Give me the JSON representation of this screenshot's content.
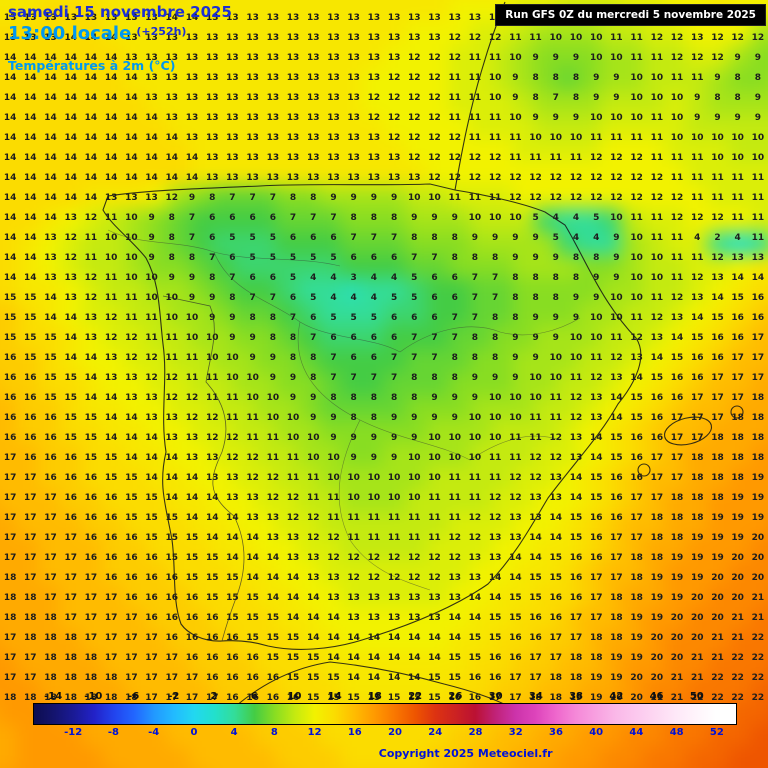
{
  "header": {
    "date_line": "samedi 15 novembre 2025",
    "time_line": "13:00 locale",
    "offset": "(+252h)",
    "variable": "Températures à 2m (°C)",
    "run_info": "Run GFS 0Z du mercredi 5 novembre 2025"
  },
  "copyright": "Copyright 2025 Meteociel.fr",
  "legend": {
    "range": {
      "min": -16,
      "max": 54
    },
    "top_labels": [
      -14,
      -10,
      -6,
      -2,
      2,
      6,
      10,
      14,
      18,
      22,
      26,
      30,
      34,
      38,
      42,
      46,
      50
    ],
    "bottom_labels": [
      -12,
      -8,
      -4,
      0,
      4,
      8,
      12,
      16,
      20,
      24,
      28,
      32,
      36,
      40,
      44,
      48,
      52
    ],
    "scale": [
      [
        -16,
        "#0d0d50"
      ],
      [
        -14,
        "#14146e"
      ],
      [
        -12,
        "#1a1a96"
      ],
      [
        -10,
        "#2222c8"
      ],
      [
        -8,
        "#2244ee"
      ],
      [
        -6,
        "#2266ff"
      ],
      [
        -4,
        "#2299ff"
      ],
      [
        -2,
        "#22bbff"
      ],
      [
        0,
        "#22d8f0"
      ],
      [
        2,
        "#22e0cc"
      ],
      [
        4,
        "#33dd99"
      ],
      [
        6,
        "#44cc44"
      ],
      [
        8,
        "#88dd22"
      ],
      [
        10,
        "#c4ea10"
      ],
      [
        12,
        "#f2f200"
      ],
      [
        14,
        "#fbdc00"
      ],
      [
        16,
        "#ffbb00"
      ],
      [
        18,
        "#ff9900"
      ],
      [
        20,
        "#f97700"
      ],
      [
        22,
        "#ee5500"
      ],
      [
        24,
        "#dd3311"
      ],
      [
        26,
        "#cc2222"
      ],
      [
        28,
        "#bb1133"
      ],
      [
        30,
        "#c02277"
      ],
      [
        32,
        "#cc33aa"
      ],
      [
        34,
        "#dd44bb"
      ],
      [
        36,
        "#ee66cc"
      ],
      [
        38,
        "#f588d8"
      ],
      [
        40,
        "#f8a0e0"
      ],
      [
        42,
        "#fab8e8"
      ],
      [
        44,
        "#fcc8ee"
      ],
      [
        46,
        "#fdd8f2"
      ],
      [
        48,
        "#fee8f8"
      ],
      [
        50,
        "#fff4fb"
      ],
      [
        52,
        "#ffffff"
      ],
      [
        54,
        "#ffffff"
      ]
    ]
  },
  "grid": {
    "cols": 38,
    "rows": 35,
    "values": [
      "13 13 13 13 13 13 13 13 14 14 13 13 13 13 13 13 13 13 13 13 13 13 13 13 13 13 13 13 13 13 13 13 13 13 13 13 13 13",
      "13 13 13 14 14 14 13 13 13 13 13 13 13 13 13 13 13 13 13 13 13 13 12 12 12 11 11 10 10 10 11 11 12 12 13 12 12 12",
      "14 14 14 14 14 14 13 13 13 13 13 13 13 13 13 13 13 13 13 13 12 12 12 11 11 10 9 9 9 10 10 11 11 12 12 12 9 9",
      "14 14 14 14 14 14 14 13 13 13 13 13 13 13 13 13 13 13 13 12 12 12 11 11 10 9 8 8 8 9 9 10 10 11 11 9 8 8",
      "14 14 14 14 14 14 14 13 13 13 13 13 13 13 13 13 13 13 12 12 12 12 11 11 10 9 8 7 8 9 9 10 10 10 9 8 8 9",
      "14 14 14 14 14 14 14 14 13 13 13 13 13 13 13 13 13 13 12 12 12 12 11 11 11 10 9 9 9 10 10 10 11 10 9 9 9 9",
      "14 14 14 14 14 14 14 14 14 13 13 13 13 13 13 13 13 13 13 12 12 12 12 11 11 11 10 10 10 11 11 11 11 10 10 10 10 10",
      "14 14 14 14 14 14 14 14 14 14 13 13 13 13 13 13 13 13 13 13 12 12 12 12 12 11 11 11 11 12 12 12 11 11 11 10 10 10",
      "14 14 14 14 14 14 14 14 14 14 13 13 13 13 13 13 13 13 13 13 13 12 12 12 12 12 12 12 12 12 12 12 12 11 11 11 11 11",
      "14 14 14 14 14 13 13 13 12 9 8 7 7 7 8 8 9 9 9 9 10 10 11 11 11 12 12 12 12 12 12 12 12 12 11 11 11 11",
      "14 14 14 13 12 11 10 9 8 7 6 6 6 6 7 7 7 8 8 8 9 9 9 10 10 10 5 4 4 5 10 11 11 12 12 12 11 11",
      "14 14 13 12 11 10 10 9 8 7 6 5 5 5 6 6 6 7 7 7 8 8 8 9 9 9 9 5 4 4 9 10 11 11 4 2 4 11",
      "14 14 13 12 11 10 10 9 8 8 7 6 5 5 5 5 5 6 6 6 7 7 8 8 8 9 9 9 8 8 9 10 10 11 11 12 13 13",
      "14 14 13 13 12 11 10 10 9 9 8 7 6 6 5 4 4 3 4 4 5 6 6 7 7 8 8 8 8 9 9 10 10 11 12 13 14 14",
      "15 15 14 13 12 11 11 10 10 9 9 8 7 7 6 5 4 4 4 5 5 6 6 7 7 8 8 8 9 9 10 10 11 12 13 14 15 16",
      "15 15 14 14 13 12 11 11 10 10 9 9 8 8 7 6 5 5 5 6 6 6 7 7 8 8 9 9 9 10 10 11 12 13 14 15 16 16",
      "15 15 15 14 13 12 12 11 11 10 10 9 9 8 8 7 6 6 6 6 7 7 7 8 8 9 9 9 10 10 11 12 13 14 15 16 16 17",
      "16 15 15 14 14 13 12 12 11 11 10 10 9 9 8 8 7 6 6 7 7 7 8 8 8 9 9 10 10 11 12 13 14 15 16 16 17 17",
      "16 16 15 15 14 13 13 12 12 11 11 10 10 9 9 8 7 7 7 7 8 8 8 9 9 9 10 10 11 12 13 14 15 16 16 17 17 17",
      "16 16 15 15 14 14 13 13 12 12 11 11 10 10 9 9 8 8 8 8 8 9 9 9 10 10 10 11 12 13 14 15 16 16 17 17 17 18",
      "16 16 16 15 15 14 14 13 13 12 12 11 11 10 10 9 9 8 8 9 9 9 9 10 10 10 11 11 12 13 14 15 16 17 17 17 18 18",
      "16 16 16 15 15 14 14 14 13 13 12 12 11 11 10 10 9 9 9 9 9 10 10 10 10 11 11 12 13 14 15 16 16 17 17 18 18 18",
      "17 16 16 16 15 15 14 14 14 13 13 12 12 11 11 10 10 9 9 9 10 10 10 10 11 11 12 12 13 14 15 16 17 17 18 18 18 18",
      "17 17 16 16 16 15 15 14 14 14 13 13 12 12 11 11 10 10 10 10 10 10 11 11 11 12 12 13 14 15 16 16 17 17 18 18 18 19",
      "17 17 17 16 16 16 15 15 14 14 14 13 13 12 12 11 11 10 10 10 10 11 11 11 12 12 13 13 14 15 16 17 17 18 18 18 19 19",
      "17 17 17 16 16 16 15 15 15 14 14 14 13 13 12 12 11 11 11 11 11 11 11 12 12 13 13 14 15 16 16 17 18 18 18 19 19 19",
      "17 17 17 17 16 16 16 15 15 15 14 14 14 13 13 12 12 11 11 11 11 11 12 12 13 13 14 14 15 16 17 17 18 18 19 19 19 20",
      "17 17 17 17 16 16 16 16 15 15 15 14 14 14 13 13 12 12 12 12 12 12 12 13 13 14 14 15 16 16 17 18 18 19 19 19 20 20",
      "18 17 17 17 17 16 16 16 16 15 15 15 14 14 14 13 13 12 12 12 12 12 13 13 14 14 15 15 16 17 17 18 19 19 19 20 20 20",
      "18 18 17 17 17 17 16 16 16 16 15 15 15 14 14 14 13 13 13 13 13 13 13 14 14 15 15 16 16 17 18 18 19 19 20 20 20 21",
      "18 18 18 17 17 17 17 16 16 16 16 15 15 15 14 14 14 13 13 13 13 13 14 14 15 15 16 16 17 17 18 19 19 20 20 20 21 21",
      "17 18 18 18 17 17 17 17 16 16 16 16 15 15 15 14 14 14 14 14 14 14 14 15 15 16 16 17 17 18 18 19 20 20 20 21 21 22",
      "17 17 18 18 18 17 17 17 17 16 16 16 16 15 15 15 14 14 14 14 14 14 15 15 16 16 17 17 18 18 19 19 20 20 21 21 22 22",
      "17 17 18 18 18 18 17 17 17 17 16 16 16 16 15 15 15 14 14 14 14 15 15 16 16 17 17 18 18 19 19 20 20 21 21 22 22 22",
      "18 18 18 18 18 18 18 17 17 17 17 16 16 16 16 15 15 15 15 15 15 15 16 16 17 17 18 18 19 19 20 20 21 21 22 22 22 22"
    ]
  }
}
